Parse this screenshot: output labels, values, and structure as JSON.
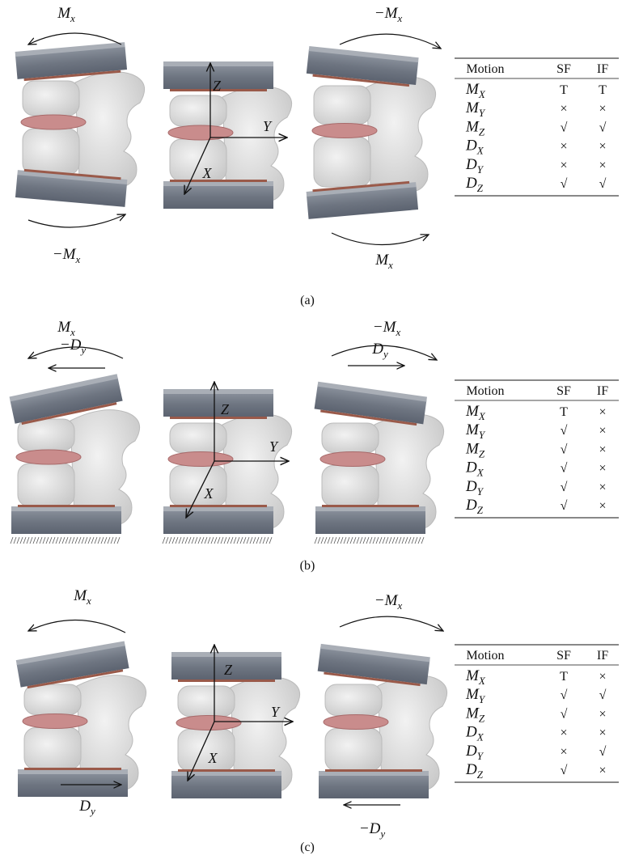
{
  "panels": [
    {
      "caption": "(a)",
      "labels": [
        {
          "main": "M",
          "sub": "x"
        },
        {
          "main": "−M",
          "sub": "x"
        },
        {
          "main": "−M",
          "sub": "x"
        },
        {
          "main": "M",
          "sub": "x"
        }
      ],
      "axes": [
        "Z",
        "Y",
        "X"
      ],
      "table": {
        "header": [
          "Motion",
          "SF",
          "IF"
        ],
        "rows": [
          [
            {
              "main": "M",
              "sub": "X"
            },
            "T",
            "T"
          ],
          [
            {
              "main": "M",
              "sub": "Y"
            },
            "×",
            "×"
          ],
          [
            {
              "main": "M",
              "sub": "Z"
            },
            "√",
            "√"
          ],
          [
            {
              "main": "D",
              "sub": "X"
            },
            "×",
            "×"
          ],
          [
            {
              "main": "D",
              "sub": "Y"
            },
            "×",
            "×"
          ],
          [
            {
              "main": "D",
              "sub": "Z"
            },
            "√",
            "√"
          ]
        ]
      }
    },
    {
      "caption": "(b)",
      "labels": [
        {
          "main": "M",
          "sub": "x"
        },
        {
          "main": "−D",
          "sub": "y"
        },
        {
          "main": "−M",
          "sub": "x"
        },
        {
          "main": "D",
          "sub": "y"
        }
      ],
      "axes": [
        "Z",
        "Y",
        "X"
      ],
      "table": {
        "header": [
          "Motion",
          "SF",
          "IF"
        ],
        "rows": [
          [
            {
              "main": "M",
              "sub": "X"
            },
            "T",
            "×"
          ],
          [
            {
              "main": "M",
              "sub": "Y"
            },
            "√",
            "×"
          ],
          [
            {
              "main": "M",
              "sub": "Z"
            },
            "√",
            "×"
          ],
          [
            {
              "main": "D",
              "sub": "X"
            },
            "√",
            "×"
          ],
          [
            {
              "main": "D",
              "sub": "Y"
            },
            "√",
            "×"
          ],
          [
            {
              "main": "D",
              "sub": "Z"
            },
            "√",
            "×"
          ]
        ]
      }
    },
    {
      "caption": "(c)",
      "labels": [
        {
          "main": "M",
          "sub": "x"
        },
        {
          "main": "−M",
          "sub": "x"
        },
        {
          "main": "D",
          "sub": "y"
        },
        {
          "main": "−D",
          "sub": "y"
        }
      ],
      "axes": [
        "Z",
        "Y",
        "X"
      ],
      "table": {
        "header": [
          "Motion",
          "SF",
          "IF"
        ],
        "rows": [
          [
            {
              "main": "M",
              "sub": "X"
            },
            "T",
            "×"
          ],
          [
            {
              "main": "M",
              "sub": "Y"
            },
            "√",
            "√"
          ],
          [
            {
              "main": "M",
              "sub": "Z"
            },
            "√",
            "×"
          ],
          [
            {
              "main": "D",
              "sub": "X"
            },
            "×",
            "×"
          ],
          [
            {
              "main": "D",
              "sub": "Y"
            },
            "×",
            "√"
          ],
          [
            {
              "main": "D",
              "sub": "Z"
            },
            "√",
            "×"
          ]
        ]
      }
    }
  ]
}
